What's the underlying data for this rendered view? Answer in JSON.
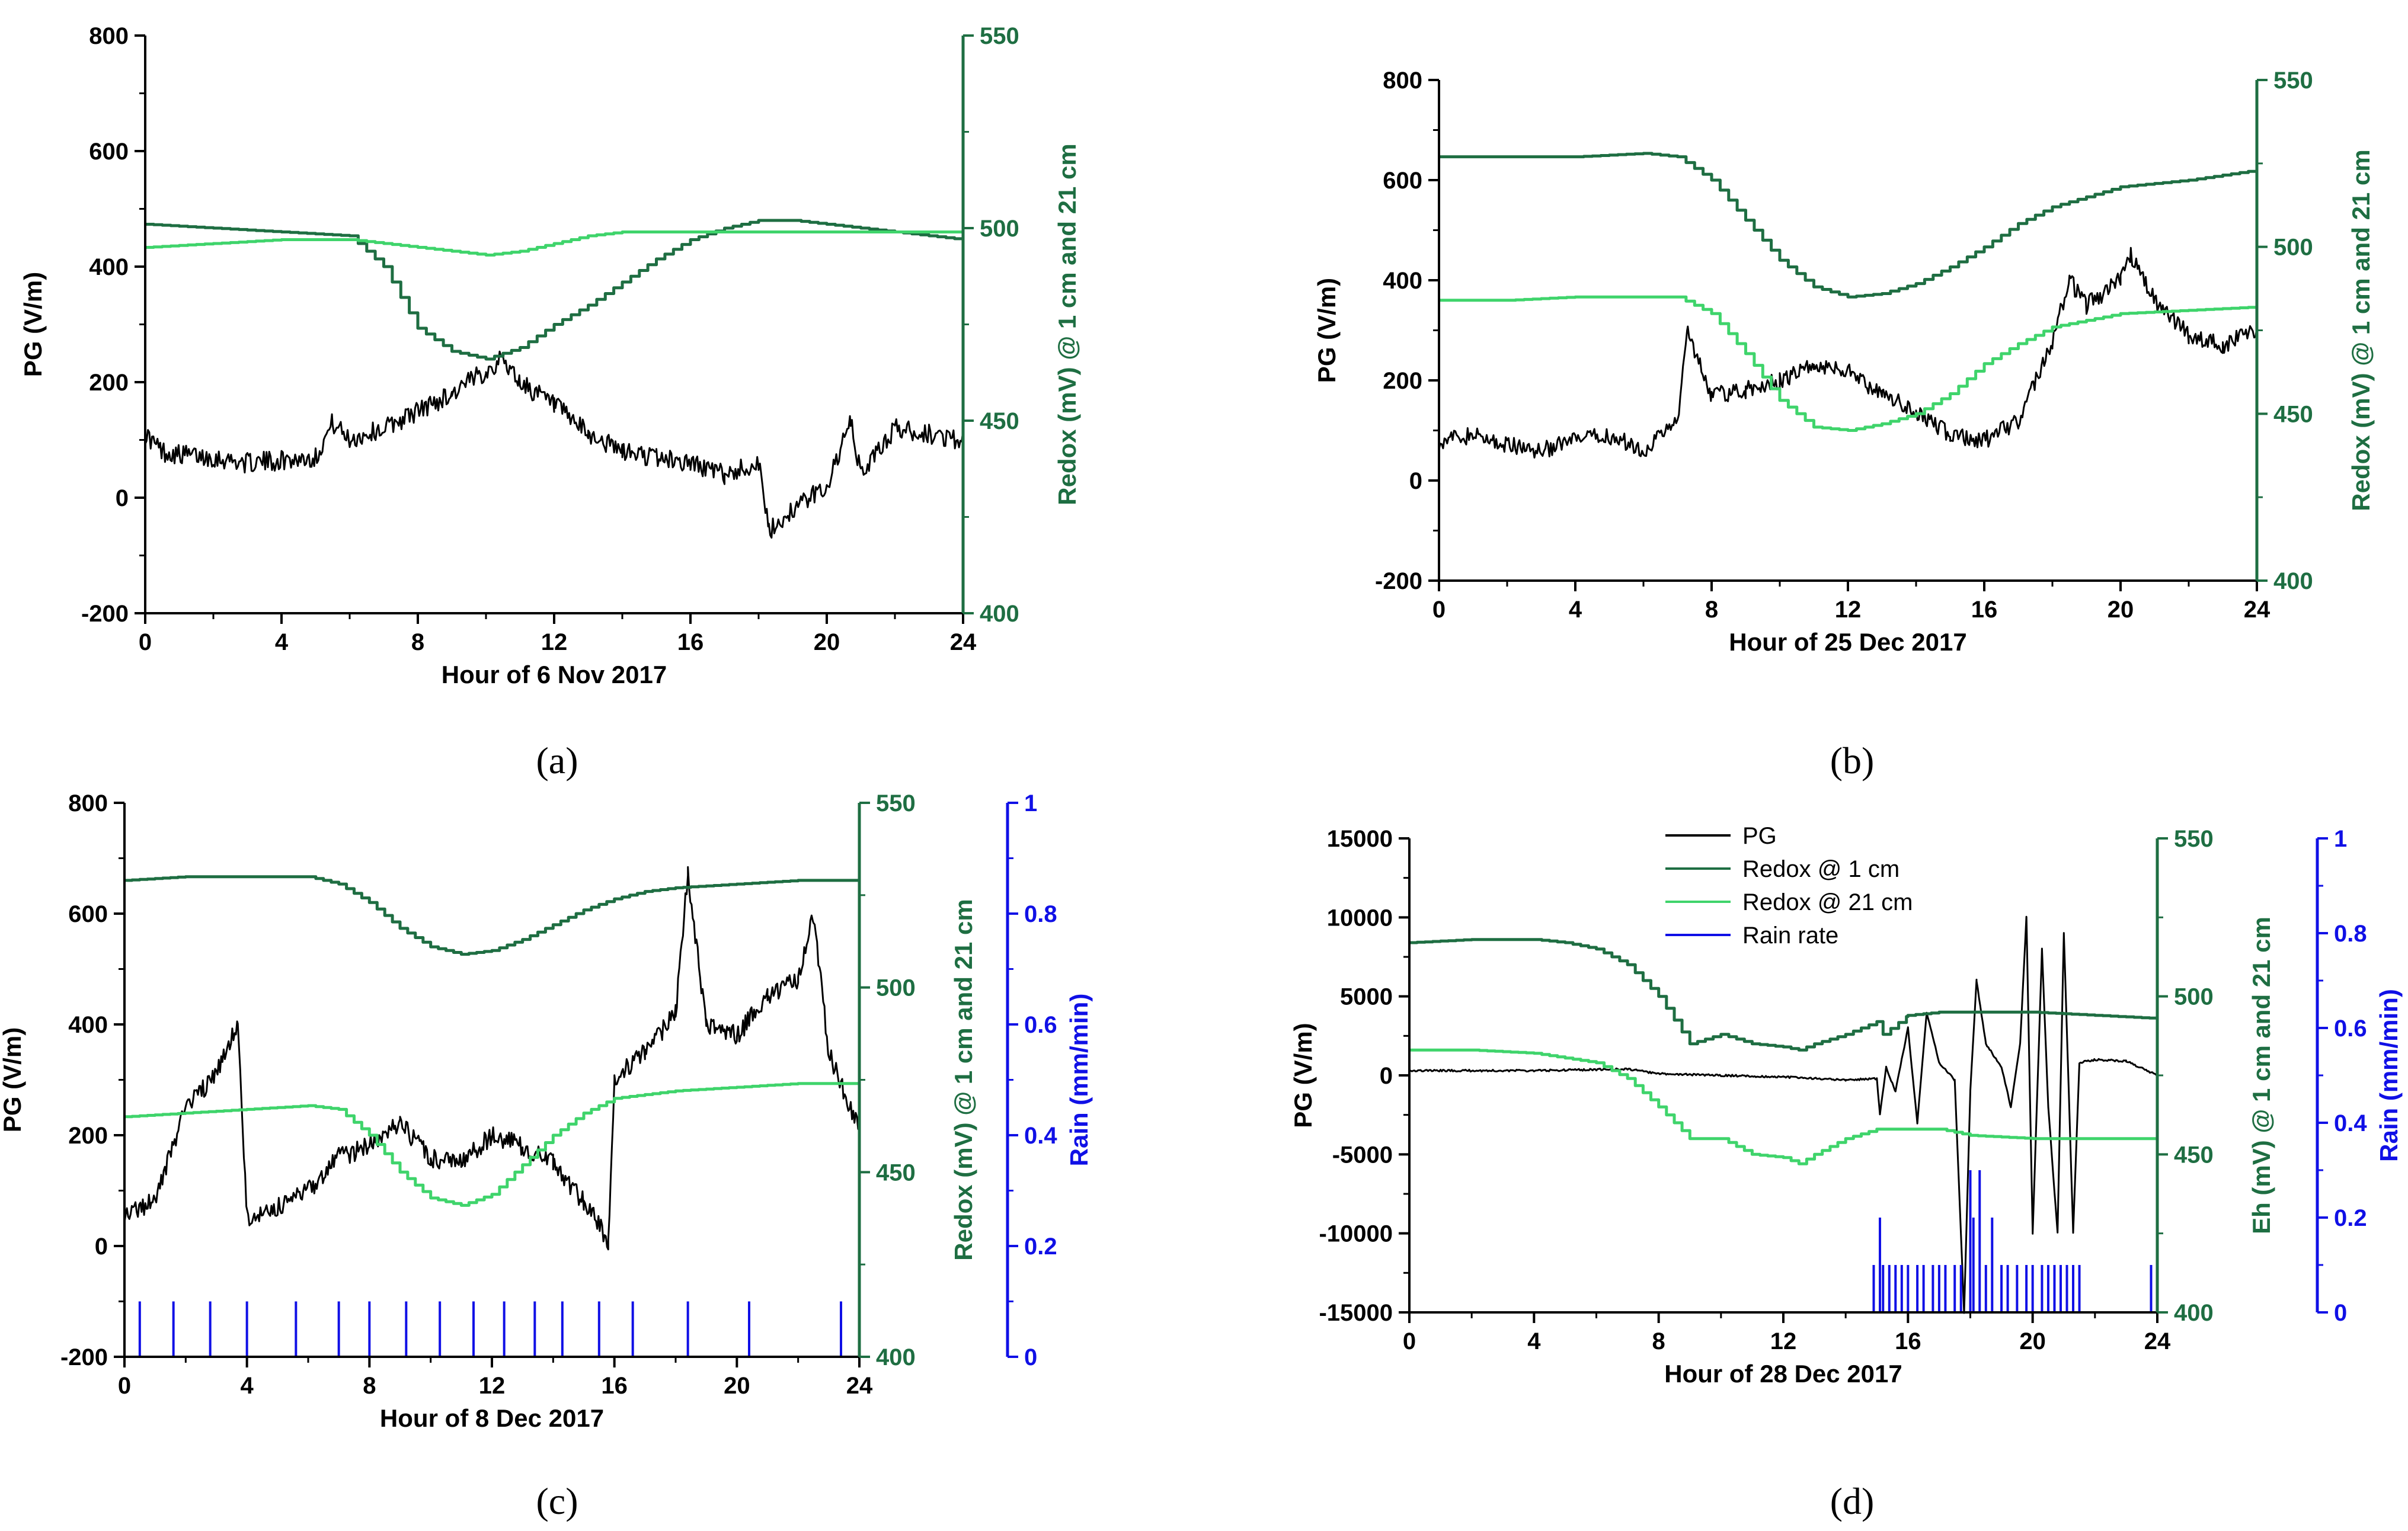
{
  "figure": {
    "captions": [
      "(a)",
      "(b)",
      "(c)",
      "(d)"
    ]
  },
  "colors": {
    "pg": "#000000",
    "redox1": "#1e6e42",
    "redox21": "#3fd46b",
    "rain": "#1010e6",
    "axis_redox": "#1e6e42",
    "axis_rain": "#1010e6"
  },
  "chart_data": [
    {
      "id": "a",
      "type": "line",
      "caption": "(a)",
      "xlabel": "Hour of 6 Nov 2017",
      "xlim": [
        0,
        24
      ],
      "xticks": [
        0,
        4,
        8,
        12,
        16,
        20,
        24
      ],
      "ylabel_left": "PG (V/m)",
      "ylim_left": [
        -200,
        800
      ],
      "yticks_left": [
        -200,
        0,
        200,
        400,
        600,
        800
      ],
      "ylabel_right": "Redox (mV) @ 1 cm and 21 cm",
      "ylim_right": [
        400,
        550
      ],
      "yticks_right": [
        400,
        450,
        500,
        550
      ],
      "series": [
        {
          "name": "PG",
          "axis": "left",
          "x": [
            0,
            0.5,
            1,
            2,
            3,
            4,
            5,
            5.5,
            6,
            7,
            8,
            9,
            10,
            10.5,
            11,
            12,
            13,
            14,
            15,
            16,
            17,
            18,
            18.3,
            19,
            20,
            20.7,
            21,
            22,
            23,
            24
          ],
          "values": [
            110,
            80,
            75,
            70,
            60,
            65,
            70,
            130,
            100,
            120,
            150,
            180,
            220,
            240,
            200,
            160,
            110,
            80,
            70,
            60,
            40,
            60,
            -60,
            -20,
            20,
            130,
            40,
            120,
            110,
            100
          ]
        },
        {
          "name": "Redox @ 1 cm",
          "axis": "right",
          "x": [
            0,
            2,
            4,
            6,
            7,
            8,
            9,
            10,
            11,
            12,
            13,
            14,
            15,
            16,
            17,
            18,
            19,
            20,
            22,
            24
          ],
          "values": [
            501,
            500,
            499,
            498,
            490,
            474,
            468,
            466,
            469,
            475,
            480,
            486,
            492,
            497,
            500,
            502,
            502,
            501,
            499,
            497
          ]
        },
        {
          "name": "Redox @ 21 cm",
          "axis": "right",
          "x": [
            0,
            2,
            4,
            6,
            7,
            8,
            9,
            10,
            11,
            12,
            13,
            14,
            16,
            18,
            20,
            22,
            24
          ],
          "values": [
            495,
            496,
            497,
            497,
            496,
            495,
            494,
            493,
            494,
            496,
            498,
            499,
            499,
            499,
            499,
            499,
            499
          ]
        }
      ]
    },
    {
      "id": "b",
      "type": "line",
      "caption": "(b)",
      "xlabel": "Hour of 25 Dec 2017",
      "xlim": [
        0,
        24
      ],
      "xticks": [
        0,
        4,
        8,
        12,
        16,
        20,
        24
      ],
      "ylabel_left": "PG (V/m)",
      "ylim_left": [
        -200,
        800
      ],
      "yticks_left": [
        -200,
        0,
        200,
        400,
        600,
        800
      ],
      "ylabel_right": "Redox (mV) @ 1 cm and 21 cm",
      "ylim_right": [
        400,
        550
      ],
      "yticks_right": [
        400,
        450,
        500,
        550
      ],
      "series": [
        {
          "name": "PG",
          "axis": "left",
          "x": [
            0,
            1,
            2,
            3,
            4,
            5,
            6,
            7,
            7.3,
            8,
            9,
            10,
            11,
            12,
            13,
            14,
            15,
            16,
            17,
            18,
            18.5,
            19,
            20,
            20.3,
            21,
            22,
            23,
            24
          ],
          "values": [
            80,
            90,
            70,
            60,
            80,
            90,
            60,
            120,
            300,
            170,
            180,
            200,
            230,
            220,
            170,
            140,
            90,
            80,
            120,
            280,
            400,
            350,
            400,
            450,
            360,
            290,
            270,
            300
          ]
        },
        {
          "name": "Redox @ 1 cm",
          "axis": "right",
          "x": [
            0,
            2,
            4,
            6,
            7,
            8,
            9,
            10,
            11,
            12,
            13,
            14,
            15,
            16,
            17,
            18,
            19,
            20,
            22,
            24
          ],
          "values": [
            527,
            527,
            527,
            528,
            527,
            520,
            508,
            496,
            488,
            485,
            486,
            489,
            494,
            500,
            507,
            512,
            515,
            518,
            520,
            523
          ]
        },
        {
          "name": "Redox @ 21 cm",
          "axis": "right",
          "x": [
            0,
            2,
            4,
            6,
            7,
            8,
            9,
            10,
            11,
            12,
            13,
            14,
            15,
            16,
            17,
            18,
            19,
            20,
            22,
            24
          ],
          "values": [
            484,
            484,
            485,
            485,
            485,
            480,
            468,
            454,
            446,
            445,
            447,
            450,
            456,
            465,
            471,
            476,
            478,
            480,
            481,
            482
          ]
        }
      ]
    },
    {
      "id": "c",
      "type": "line",
      "caption": "(c)",
      "xlabel": "Hour of 8 Dec 2017",
      "xlim": [
        0,
        24
      ],
      "xticks": [
        0,
        4,
        8,
        12,
        16,
        20,
        24
      ],
      "ylabel_left": "PG (V/m)",
      "ylim_left": [
        -200,
        800
      ],
      "yticks_left": [
        -200,
        0,
        200,
        400,
        600,
        800
      ],
      "ylabel_right": "Redox (mV) @ 1 cm and 21 cm",
      "ylim_right": [
        400,
        550
      ],
      "yticks_right": [
        400,
        450,
        500,
        550
      ],
      "ylabel_right2": "Rain  (mm/min)",
      "ylim_right2": [
        0,
        1
      ],
      "yticks_right2": [
        0,
        0.2,
        0.4,
        0.6,
        0.8,
        1
      ],
      "series": [
        {
          "name": "PG",
          "axis": "left",
          "x": [
            0,
            1,
            2,
            3,
            3.7,
            4,
            5,
            6,
            7,
            8,
            9,
            10,
            11,
            12,
            13,
            14,
            15,
            15.8,
            16,
            17,
            18,
            18.4,
            19,
            20,
            21,
            22,
            22.5,
            23,
            24
          ],
          "values": [
            60,
            80,
            250,
            310,
            400,
            50,
            70,
            100,
            160,
            180,
            220,
            160,
            150,
            200,
            180,
            150,
            80,
            10,
            300,
            350,
            420,
            670,
            400,
            380,
            450,
            480,
            600,
            350,
            210
          ]
        },
        {
          "name": "Redox @ 1 cm",
          "axis": "right",
          "x": [
            0,
            2,
            4,
            6,
            7,
            8,
            9,
            10,
            11,
            12,
            13,
            14,
            15,
            16,
            17,
            18,
            20,
            22,
            24
          ],
          "values": [
            529,
            530,
            530,
            530,
            528,
            523,
            516,
            511,
            509,
            510,
            513,
            517,
            521,
            524,
            526,
            527,
            528,
            529,
            529
          ]
        },
        {
          "name": "Redox @ 21 cm",
          "axis": "right",
          "x": [
            0,
            2,
            4,
            6,
            7,
            8,
            9,
            10,
            11,
            12,
            13,
            14,
            15,
            16,
            17,
            18,
            20,
            22,
            24
          ],
          "values": [
            465,
            466,
            467,
            468,
            467,
            460,
            450,
            443,
            441,
            444,
            452,
            460,
            466,
            470,
            471,
            472,
            473,
            474,
            474
          ]
        },
        {
          "name": "Rain rate",
          "axis": "right2",
          "type": "bar",
          "x": [
            0.5,
            1.6,
            2.8,
            4,
            5.6,
            7,
            8,
            9.2,
            10.3,
            11.4,
            12.4,
            13.4,
            14.3,
            15.5,
            16.6,
            18.4,
            20.4,
            23.4
          ],
          "values": [
            0.1,
            0.1,
            0.1,
            0.1,
            0.1,
            0.1,
            0.1,
            0.1,
            0.1,
            0.1,
            0.1,
            0.1,
            0.1,
            0.1,
            0.1,
            0.1,
            0.1,
            0.1
          ]
        }
      ]
    },
    {
      "id": "d",
      "type": "line",
      "caption": "(d)",
      "xlabel": "Hour of 28 Dec 2017",
      "xlim": [
        0,
        24
      ],
      "xticks": [
        0,
        4,
        8,
        12,
        16,
        20,
        24
      ],
      "ylabel_left": "PG (V/m)",
      "ylim_left": [
        -15000,
        15000
      ],
      "yticks_left": [
        -15000,
        -10000,
        -5000,
        0,
        5000,
        10000,
        15000
      ],
      "ylabel_right": "Eh (mV) @ 1 cm and 21 cm",
      "ylim_right": [
        400,
        550
      ],
      "yticks_right": [
        400,
        450,
        500,
        550
      ],
      "ylabel_right2": "Rain (mm/min)",
      "ylim_right2": [
        0,
        1
      ],
      "yticks_right2": [
        0,
        0.2,
        0.4,
        0.6,
        0.8,
        1
      ],
      "legend": [
        "PG",
        "Redox @ 1 cm",
        "Redox @ 21 cm",
        "Rain rate"
      ],
      "series": [
        {
          "name": "PG",
          "axis": "left",
          "x": [
            0,
            4,
            7,
            8,
            10,
            12,
            14,
            15,
            15.1,
            15.3,
            15.6,
            16,
            16.3,
            16.6,
            17,
            17.5,
            17.8,
            18,
            18.2,
            18.5,
            19,
            19.3,
            19.6,
            19.8,
            20,
            20.3,
            20.5,
            20.8,
            21,
            21.3,
            21.5,
            22,
            23,
            24
          ],
          "values": [
            300,
            300,
            400,
            100,
            0,
            -100,
            -300,
            -200,
            -2500,
            500,
            -1000,
            3000,
            -3000,
            4000,
            800,
            -300,
            -15000,
            -1000,
            6000,
            2000,
            500,
            -2000,
            2000,
            10000,
            -10000,
            8000,
            -2000,
            -10000,
            9000,
            -10000,
            800,
            1000,
            900,
            0
          ]
        },
        {
          "name": "Redox @ 1 cm",
          "axis": "right",
          "x": [
            0,
            2,
            4,
            5,
            6,
            7,
            8,
            9,
            10,
            11,
            12,
            12.5,
            13,
            14,
            15,
            15.2,
            16,
            17,
            18,
            20,
            22,
            24
          ],
          "values": [
            517,
            518,
            518,
            517,
            515,
            510,
            500,
            485,
            488,
            485,
            484,
            483,
            485,
            488,
            492,
            488,
            494,
            495,
            495,
            495,
            494,
            493
          ]
        },
        {
          "name": "Redox @ 21 cm",
          "axis": "right",
          "x": [
            0,
            2,
            4,
            6,
            7,
            8,
            9,
            10,
            11,
            12,
            12.5,
            13,
            14,
            15,
            16,
            17,
            18,
            20,
            22,
            24
          ],
          "values": [
            483,
            483,
            482,
            479,
            474,
            465,
            455,
            455,
            450,
            449,
            447,
            450,
            455,
            458,
            458,
            458,
            456,
            455,
            455,
            455
          ]
        },
        {
          "name": "Rain rate",
          "axis": "right2",
          "type": "bar",
          "x": [
            14.9,
            15.1,
            15.2,
            15.4,
            15.6,
            15.8,
            16,
            16.3,
            16.5,
            16.8,
            17,
            17.2,
            17.5,
            17.7,
            18,
            18.1,
            18.3,
            18.5,
            18.7,
            19,
            19.2,
            19.5,
            19.8,
            20,
            20.3,
            20.5,
            20.7,
            20.9,
            21.1,
            21.3,
            21.5,
            23.8
          ],
          "values": [
            0.1,
            0.2,
            0.1,
            0.1,
            0.1,
            0.1,
            0.1,
            0.1,
            0.1,
            0.1,
            0.1,
            0.1,
            0.1,
            0.1,
            0.3,
            0.2,
            0.3,
            0.1,
            0.2,
            0.1,
            0.1,
            0.1,
            0.1,
            0.1,
            0.1,
            0.1,
            0.1,
            0.1,
            0.1,
            0.1,
            0.1,
            0.1
          ]
        }
      ]
    }
  ]
}
